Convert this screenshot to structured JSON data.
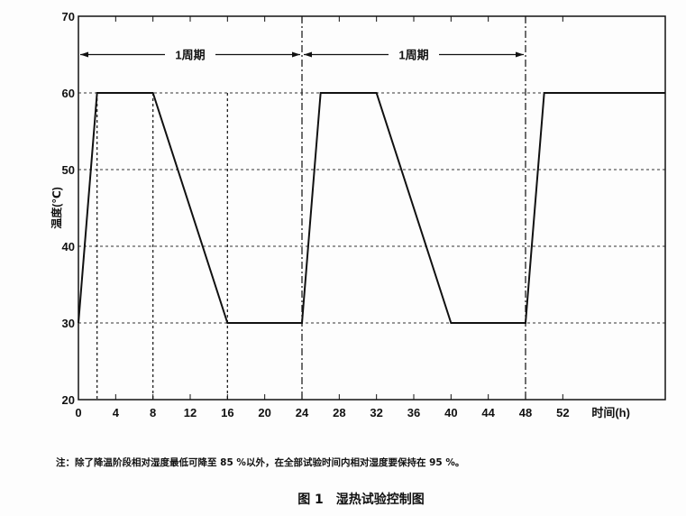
{
  "chart_data": {
    "type": "line",
    "xlabel": "时间(h)",
    "ylabel": "温度(℃)",
    "xlim": [
      0,
      63
    ],
    "ylim": [
      20,
      70
    ],
    "xticks": [
      0,
      4,
      8,
      12,
      16,
      20,
      24,
      28,
      32,
      36,
      40,
      44,
      48,
      52
    ],
    "yticks": [
      20,
      30,
      40,
      50,
      60,
      70
    ],
    "grid": "dotted horizontal at 30,40,50,60",
    "series": [
      {
        "x": [
          0,
          2,
          8,
          16,
          24,
          26,
          32,
          40,
          48,
          50,
          63
        ],
        "y": [
          30,
          60,
          60,
          30,
          30,
          60,
          60,
          30,
          30,
          60,
          60
        ],
        "color": "#111111"
      }
    ],
    "vlines_dotted": [
      2,
      8,
      16
    ],
    "vlines_dashdot": [
      24,
      48
    ],
    "annotations": [
      {
        "text": "1周期",
        "from": 0,
        "to": 24,
        "y": 65
      },
      {
        "text": "1周期",
        "from": 24,
        "to": 48,
        "y": 65
      }
    ]
  },
  "note": "注：除了降温阶段相对湿度最低可降至 85 %以外，在全部试验时间内相对湿度要保持在 95 %。",
  "caption": "图 1　湿热试验控制图"
}
